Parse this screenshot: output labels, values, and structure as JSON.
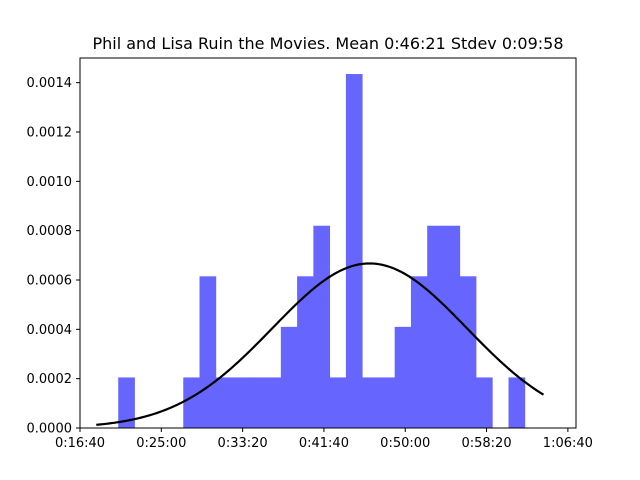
{
  "chart_data": {
    "type": "bar",
    "title": "Phil and Lisa Ruin the Movies. Mean 0:46:21 Stdev 0:09:58",
    "xlabel": "",
    "ylabel": "",
    "bar_color": "#6666ff",
    "curve_color": "#000000",
    "xlim_seconds": [
      1000,
      4050
    ],
    "ylim": [
      0,
      0.0015
    ],
    "grid": false,
    "xtick_labels": [
      "0:16:40",
      "0:25:00",
      "0:33:20",
      "0:41:40",
      "0:50:00",
      "0:58:20",
      "1:06:40"
    ],
    "xtick_values_seconds": [
      1000,
      1500,
      2000,
      2500,
      3000,
      3500,
      4000
    ],
    "ytick_labels": [
      "0.0000",
      "0.0002",
      "0.0004",
      "0.0006",
      "0.0008",
      "0.0010",
      "0.0012",
      "0.0014"
    ],
    "ytick_values": [
      0,
      0.0002,
      0.0004,
      0.0006,
      0.0008,
      0.001,
      0.0012,
      0.0014
    ],
    "histogram": {
      "bin_start_seconds": 1235,
      "bin_width_seconds": 100,
      "densities": [
        0.000205,
        0,
        0,
        0,
        0.000205,
        0.000615,
        0.000205,
        0.000205,
        0.000205,
        0.000205,
        0.00041,
        0.000615,
        0.00082,
        0.000205,
        0.001435,
        0.000205,
        0.000205,
        0.00041,
        0.000615,
        0.00082,
        0.00082,
        0.000615,
        0.000205,
        0,
        0.000205
      ]
    },
    "normal_fit": {
      "mean_seconds": 2781,
      "stdev_seconds": 598,
      "x_range_seconds": [
        1100,
        3850
      ]
    }
  }
}
